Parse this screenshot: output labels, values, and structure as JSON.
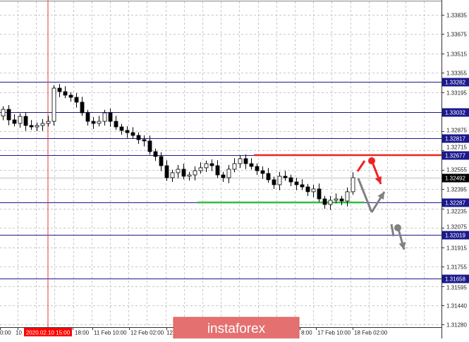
{
  "chart_data": {
    "type": "candlestick",
    "title": "",
    "grid": true,
    "ylim": [
      1.312,
      1.3395
    ],
    "y_ticks": [
      "1.33835",
      "1.33675",
      "1.33515",
      "1.33355",
      "1.33195",
      "1.32875",
      "1.32715",
      "1.32555",
      "1.32395",
      "1.32235",
      "1.32075",
      "1.31915",
      "1.31755",
      "1.31595",
      "1.31440",
      "1.31280"
    ],
    "x_ticks": [
      "0:00",
      "10",
      "18:00",
      "11 Feb 10:00",
      "12 Feb 02:00",
      "12",
      "8:00",
      "17 Feb 10:00",
      "18 Feb 02:00"
    ],
    "crosshair_time_label": "2020.02.10 15:00",
    "first_open": 1.33,
    "closes": [
      1.33055,
      1.32968,
      1.32939,
      1.32997,
      1.32922,
      1.3291,
      1.32922,
      1.32939,
      1.32956,
      1.3323,
      1.33201,
      1.33172,
      1.33154,
      1.33114,
      1.33026,
      1.32956,
      1.32939,
      1.32956,
      1.33026,
      1.32956,
      1.3291,
      1.32881,
      1.32863,
      1.3284,
      1.32805,
      1.32794,
      1.32706,
      1.32666,
      1.3259,
      1.32491,
      1.32532,
      1.32561,
      1.32503,
      1.32514,
      1.32549,
      1.32573,
      1.32607,
      1.3259,
      1.32514,
      1.32491,
      1.32561,
      1.32607,
      1.32648,
      1.32607,
      1.32584,
      1.32549,
      1.32526,
      1.32474,
      1.32433,
      1.32503,
      1.32491,
      1.32456,
      1.32433,
      1.32415,
      1.32375,
      1.32398,
      1.32316,
      1.3227,
      1.32305,
      1.32316,
      1.32299,
      1.32375,
      1.32491
    ],
    "level_lines": [
      {
        "label": "1.33282",
        "value": 1.33282
      },
      {
        "label": "1.33032",
        "value": 1.33032
      },
      {
        "label": "1.32817",
        "value": 1.32817
      },
      {
        "label": "1.32677",
        "value": 1.32677
      },
      {
        "label": "1.32287",
        "value": 1.32287
      },
      {
        "label": "1.32019",
        "value": 1.32019
      },
      {
        "label": "1.31658",
        "value": 1.31658
      }
    ],
    "current_price": {
      "label": "1.32492",
      "value": 1.32492
    },
    "resistance_line": {
      "value": 1.32677,
      "color": "#ee2222"
    },
    "support_line": {
      "value": 1.32287,
      "color": "#33bb44"
    },
    "level_color": "#1a1a8c",
    "forecast_colors": {
      "bearish": "#ee2222",
      "alternative": "#808080"
    }
  },
  "watermark": "instaforex"
}
